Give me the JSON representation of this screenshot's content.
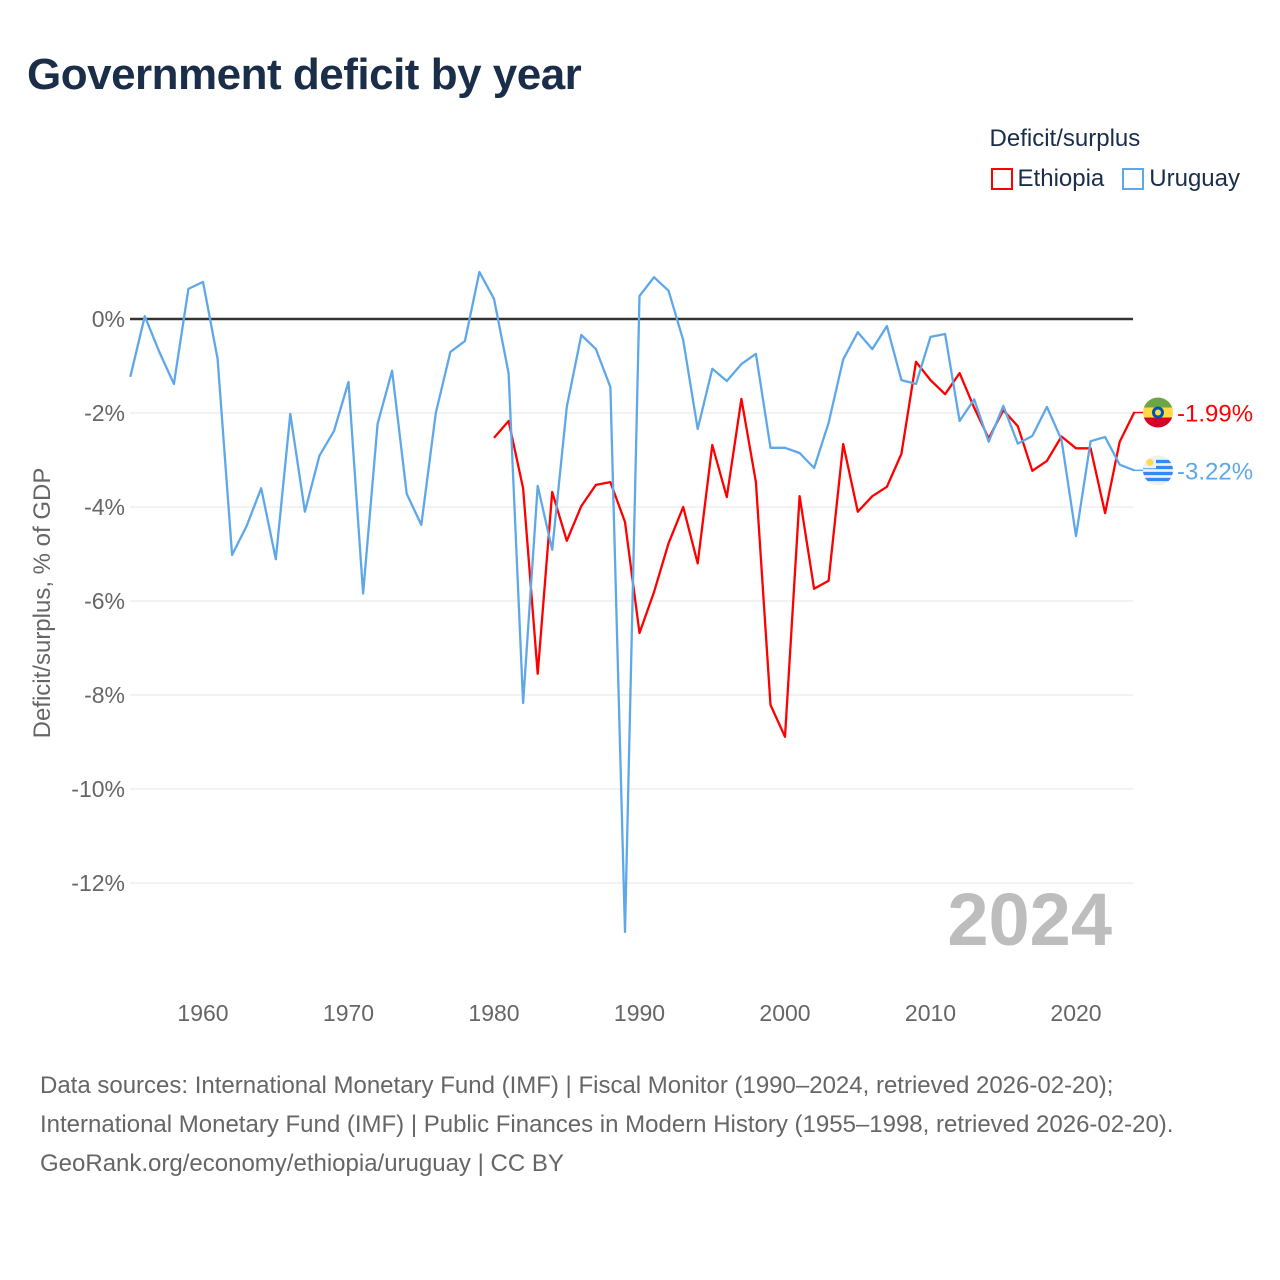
{
  "title": "Government deficit by year",
  "legend": {
    "title": "Deficit/surplus",
    "items": [
      {
        "name": "Ethiopia",
        "color": "#ff0000"
      },
      {
        "name": "Uruguay",
        "color": "#5ea8ea"
      }
    ]
  },
  "chart_data": {
    "type": "line",
    "title": "Government deficit by year",
    "ylabel": "Deficit/surplus, % of GDP",
    "xlabel": "",
    "xlim": [
      1955,
      2024
    ],
    "ylim": [
      -13.5,
      1.5
    ],
    "x_ticks": [
      1960,
      1970,
      1980,
      1990,
      2000,
      2010,
      2020
    ],
    "x_tick_labels": [
      "1960",
      "1970",
      "1980",
      "1990",
      "2000",
      "2010",
      "2020"
    ],
    "y_ticks": [
      0,
      -2,
      -4,
      -6,
      -8,
      -10,
      -12
    ],
    "y_tick_labels": [
      "0%",
      "-2%",
      "-4%",
      "-6%",
      "-8%",
      "-10%",
      "-12%"
    ],
    "grid": true,
    "year_label": "2024",
    "series": [
      {
        "name": "Ethiopia",
        "color": "#ff0000",
        "end_label": "-1.99%",
        "start_year": 1980,
        "values": [
          -2.53,
          -2.17,
          -3.6,
          -7.55,
          -3.68,
          -4.72,
          -3.98,
          -3.53,
          -3.47,
          -4.32,
          -6.68,
          -5.81,
          -4.77,
          -4.0,
          -5.2,
          -2.68,
          -3.79,
          -1.7,
          -3.47,
          -8.21,
          -8.89,
          -3.77,
          -5.74,
          -5.57,
          -2.66,
          -4.1,
          -3.77,
          -3.57,
          -2.87,
          -0.91,
          -1.3,
          -1.6,
          -1.15,
          -1.89,
          -2.54,
          -1.94,
          -2.28,
          -3.23,
          -3.02,
          -2.5,
          -2.75,
          -2.75,
          -4.13,
          -2.61,
          -1.99
        ]
      },
      {
        "name": "Uruguay",
        "color": "#5ea8ea",
        "end_label": "-3.22%",
        "start_year": 1955,
        "values": [
          -1.23,
          0.06,
          -0.7,
          -1.38,
          0.64,
          0.79,
          -0.85,
          -5.02,
          -4.4,
          -3.6,
          -5.11,
          -2.02,
          -4.1,
          -2.91,
          -2.38,
          -1.34,
          -5.84,
          -2.23,
          -1.1,
          -3.72,
          -4.38,
          -2.0,
          -0.7,
          -0.47,
          1.0,
          0.43,
          -1.15,
          -8.17,
          -3.55,
          -4.91,
          -1.87,
          -0.34,
          -0.64,
          -1.45,
          -13.04,
          0.49,
          0.89,
          0.6,
          -0.45,
          -2.34,
          -1.06,
          -1.32,
          -0.96,
          -0.74,
          -2.74,
          -2.74,
          -2.85,
          -3.17,
          -2.21,
          -0.86,
          -0.28,
          -0.64,
          -0.15,
          -1.3,
          -1.38,
          -0.38,
          -0.32,
          -2.17,
          -1.71,
          -2.61,
          -1.85,
          -2.65,
          -2.49,
          -1.87,
          -2.57,
          -4.62,
          -2.6,
          -2.51,
          -3.1,
          -3.22
        ]
      }
    ]
  },
  "footer": {
    "sources": "Data sources: International Monetary Fund (IMF) | Fiscal Monitor (1990–2024, retrieved 2026-02-20); International Monetary Fund (IMF) | Public Finances in Modern History (1955–1998, retrieved 2026-02-20).",
    "link": "GeoRank.org/economy/ethiopia/uruguay | CC BY"
  }
}
